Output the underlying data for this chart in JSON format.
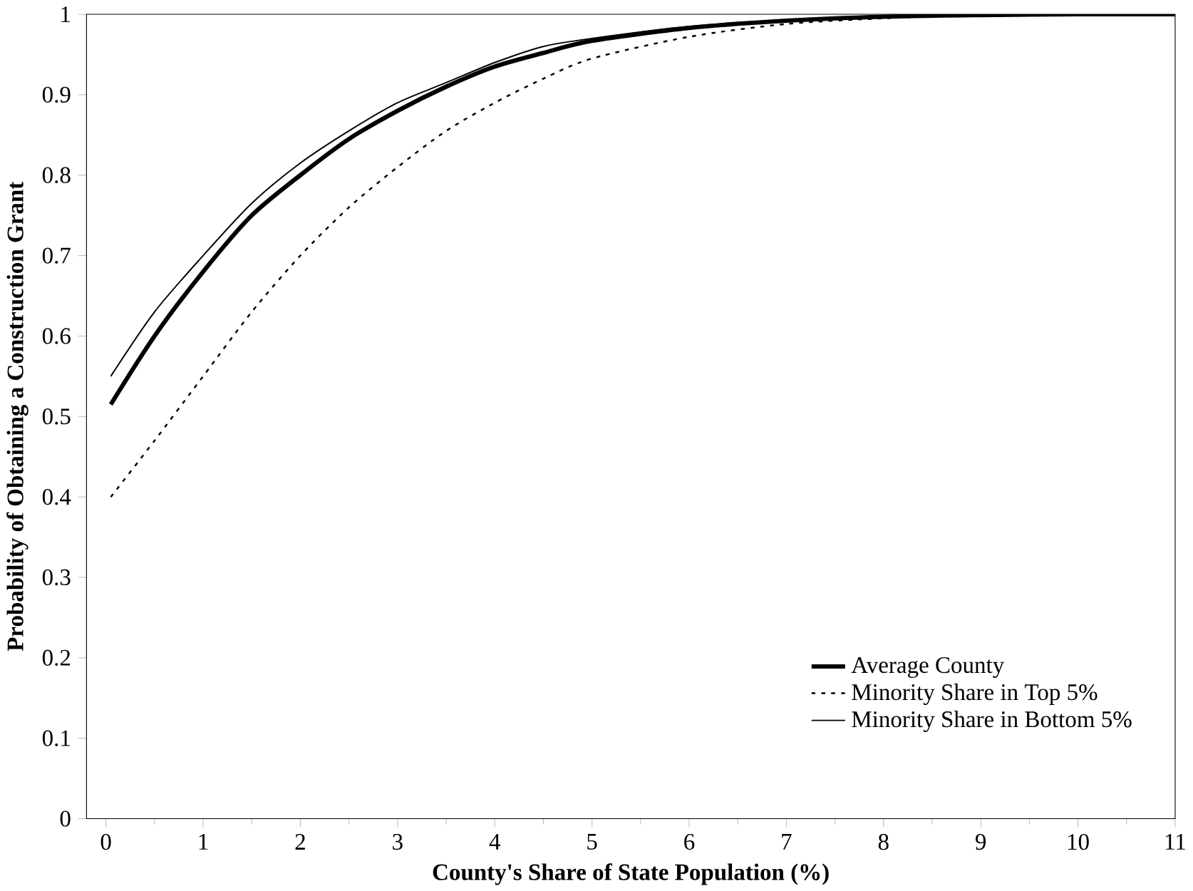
{
  "chart_data": {
    "type": "line",
    "xlabel": "County's Share of State Population (%)",
    "ylabel": "Probability of Obtaining a Construction Grant",
    "xlim": [
      -0.2,
      11
    ],
    "ylim": [
      0,
      1
    ],
    "xticks": [
      0,
      1,
      2,
      3,
      4,
      5,
      6,
      7,
      8,
      9,
      10,
      11
    ],
    "yticks": [
      0,
      0.1,
      0.2,
      0.3,
      0.4,
      0.5,
      0.6,
      0.7,
      0.8,
      0.9,
      1
    ],
    "grid": false,
    "legend": "bottom right",
    "marker": "none",
    "series": [
      {
        "name": "Average County",
        "color": "#000000",
        "line_style": "solid",
        "x": [
          0.05,
          0.5,
          1,
          1.5,
          2,
          2.5,
          3,
          3.5,
          4,
          4.5,
          5,
          6,
          7,
          8,
          9,
          10,
          11
        ],
        "values": [
          0.515,
          0.6,
          0.68,
          0.75,
          0.8,
          0.845,
          0.88,
          0.91,
          0.935,
          0.952,
          0.967,
          0.983,
          0.992,
          0.997,
          0.999,
          1.0,
          1.0
        ]
      },
      {
        "name": "Minority Share in Top 5%",
        "color": "#000000",
        "line_style": "dotted",
        "x": [
          0.05,
          0.5,
          1,
          1.5,
          2,
          2.5,
          3,
          3.5,
          4,
          4.5,
          5,
          6,
          7,
          8,
          9,
          10,
          11
        ],
        "values": [
          0.4,
          0.47,
          0.55,
          0.63,
          0.7,
          0.76,
          0.81,
          0.855,
          0.89,
          0.92,
          0.945,
          0.972,
          0.988,
          0.995,
          0.999,
          1.0,
          1.0
        ]
      },
      {
        "name": "Minority Share in Bottom 5%",
        "color": "#000000",
        "line_style": "solid",
        "x": [
          0.05,
          0.5,
          1,
          1.5,
          2,
          2.5,
          3,
          3.5,
          4,
          4.5,
          5,
          6,
          7,
          8,
          9,
          10,
          11
        ],
        "values": [
          0.55,
          0.63,
          0.7,
          0.765,
          0.815,
          0.855,
          0.89,
          0.915,
          0.94,
          0.96,
          0.97,
          0.985,
          0.993,
          0.997,
          0.999,
          1.0,
          1.0
        ]
      }
    ]
  }
}
